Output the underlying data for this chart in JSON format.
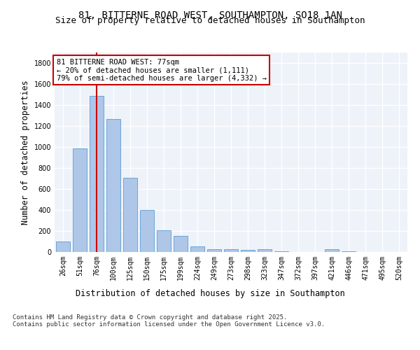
{
  "title_line1": "81, BITTERNE ROAD WEST, SOUTHAMPTON, SO18 1AN",
  "title_line2": "Size of property relative to detached houses in Southampton",
  "xlabel": "Distribution of detached houses by size in Southampton",
  "ylabel": "Number of detached properties",
  "categories": [
    "26sqm",
    "51sqm",
    "76sqm",
    "100sqm",
    "125sqm",
    "150sqm",
    "175sqm",
    "199sqm",
    "224sqm",
    "249sqm",
    "273sqm",
    "298sqm",
    "323sqm",
    "347sqm",
    "372sqm",
    "397sqm",
    "421sqm",
    "446sqm",
    "471sqm",
    "495sqm",
    "520sqm"
  ],
  "values": [
    100,
    990,
    1490,
    1270,
    710,
    400,
    205,
    155,
    55,
    30,
    25,
    20,
    25,
    5,
    0,
    0,
    25,
    5,
    0,
    0,
    0
  ],
  "bar_color": "#aec6e8",
  "bar_edge_color": "#5a9fd4",
  "vline_x_index": 2,
  "vline_color": "#cc0000",
  "annotation_text": "81 BITTERNE ROAD WEST: 77sqm\n← 20% of detached houses are smaller (1,111)\n79% of semi-detached houses are larger (4,332) →",
  "annotation_box_edgecolor": "#cc0000",
  "ylim": [
    0,
    1900
  ],
  "yticks": [
    0,
    200,
    400,
    600,
    800,
    1000,
    1200,
    1400,
    1600,
    1800
  ],
  "background_color": "#eef2f9",
  "grid_color": "#ffffff",
  "footer_line1": "Contains HM Land Registry data © Crown copyright and database right 2025.",
  "footer_line2": "Contains public sector information licensed under the Open Government Licence v3.0.",
  "title_fontsize": 10,
  "subtitle_fontsize": 9,
  "tick_fontsize": 7,
  "label_fontsize": 8.5,
  "footer_fontsize": 6.5
}
